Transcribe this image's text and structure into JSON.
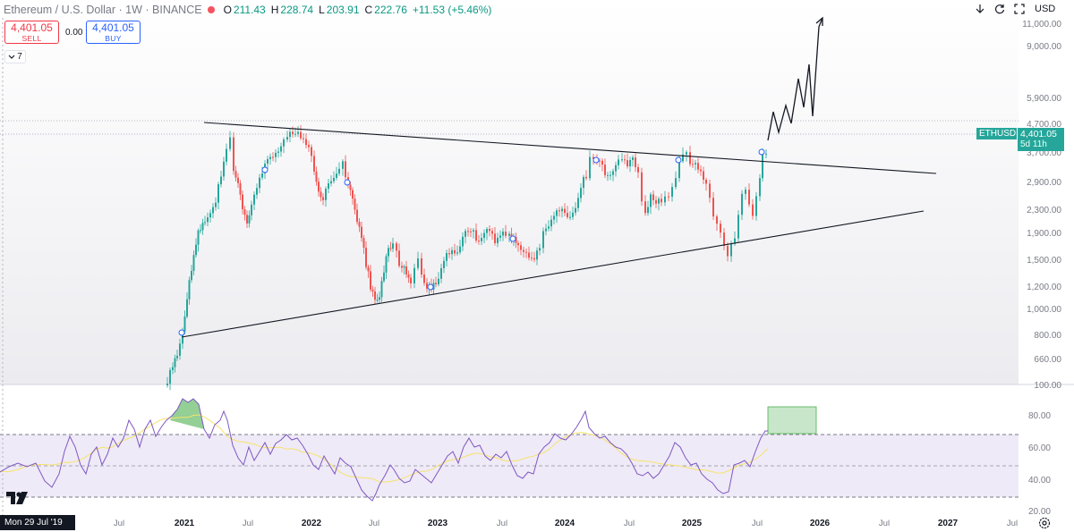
{
  "header": {
    "symbol": "Ethereum / U.S. Dollar · 1W · BINANCE",
    "ohlc": [
      {
        "key": "O",
        "value": "211.43"
      },
      {
        "key": "H",
        "value": "228.74"
      },
      {
        "key": "L",
        "value": "203.91"
      },
      {
        "key": "C",
        "value": "222.76"
      }
    ],
    "change": "+11.53 (+5.46%)"
  },
  "trade": {
    "sell_price": "4,401.05",
    "sell_label": "SELL",
    "spread": "0.00",
    "buy_price": "4,401.05",
    "buy_label": "BUY"
  },
  "indicator_count": "7",
  "top_right": {
    "currency": "USD"
  },
  "price_axis": [
    "11,000.00",
    "9,000.00",
    "5,900.00",
    "4,700.00",
    "3,700.00",
    "2,900.00",
    "2,300.00",
    "1,900.00",
    "1,500.00",
    "1,200.00",
    "1,000.00",
    "800.00",
    "660.00",
    "100.00"
  ],
  "last_price": {
    "ticker": "ETHUSD",
    "price": "4,401.05",
    "countdown": "5d 11h"
  },
  "rsi_axis": [
    "80.00",
    "60.00",
    "40.00",
    "20.00"
  ],
  "time_axis": [
    {
      "label": "Jul",
      "year": false
    },
    {
      "label": "2021",
      "year": true
    },
    {
      "label": "Jul",
      "year": false
    },
    {
      "label": "2022",
      "year": true
    },
    {
      "label": "Jul",
      "year": false
    },
    {
      "label": "2023",
      "year": true
    },
    {
      "label": "Jul",
      "year": false
    },
    {
      "label": "2024",
      "year": true
    },
    {
      "label": "Jul",
      "year": false
    },
    {
      "label": "2025",
      "year": true
    },
    {
      "label": "Jul",
      "year": false
    },
    {
      "label": "2026",
      "year": true
    },
    {
      "label": "Jul",
      "year": false
    },
    {
      "label": "2027",
      "year": true
    },
    {
      "label": "Jul",
      "year": false
    }
  ],
  "crosshair_date": "Mon 29 Jul '19",
  "colors": {
    "up": "#26a69a",
    "down": "#ef5350",
    "rsi_line": "#7e57c2",
    "rsi_ma": "#f5e36b",
    "rsi_band": "#efeaf7",
    "target_box": "#c8e6c9"
  }
}
